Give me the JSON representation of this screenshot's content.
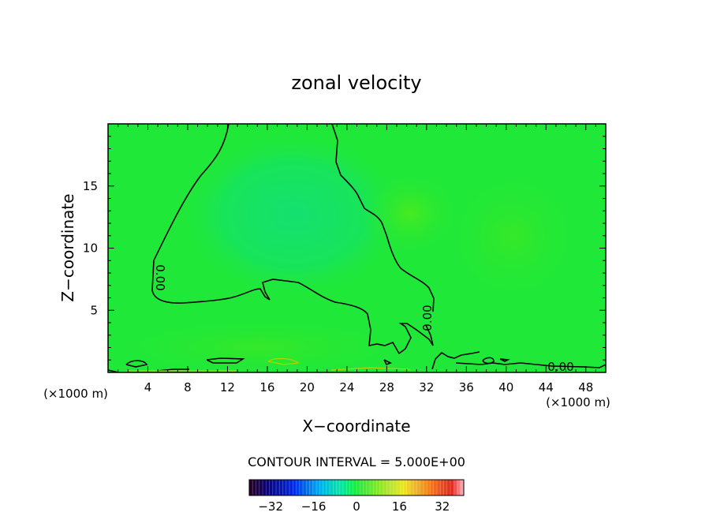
{
  "chart_data": {
    "type": "heatmap",
    "title": "zonal velocity",
    "xlabel": "X−coordinate",
    "ylabel": "Z−coordinate",
    "x_unit_left": "(×1000 m)",
    "x_unit_right": "(×1000 m)",
    "xlim": [
      0,
      50
    ],
    "ylim": [
      0,
      20
    ],
    "x_ticks": [
      4,
      8,
      12,
      16,
      20,
      24,
      28,
      32,
      36,
      40,
      44,
      48
    ],
    "y_ticks": [
      5,
      10,
      15
    ],
    "field_range": [
      -40,
      40
    ],
    "contour_labels": [
      "0.00",
      "0.00",
      "0.00"
    ],
    "contour_interval_text": "CONTOUR INTERVAL = 5.000E+00",
    "colorbar": {
      "ticks": [
        -32,
        -16,
        0,
        16,
        32
      ],
      "tick_labels": [
        "−32",
        "−16",
        "0",
        "16",
        "32"
      ],
      "range": [
        -40,
        40
      ]
    },
    "colors": {
      "field_base": "#20e838",
      "contour_line": "#000000",
      "warm_contour": "#b8d000"
    },
    "grid": false,
    "legend": "colorbar-bottom"
  }
}
